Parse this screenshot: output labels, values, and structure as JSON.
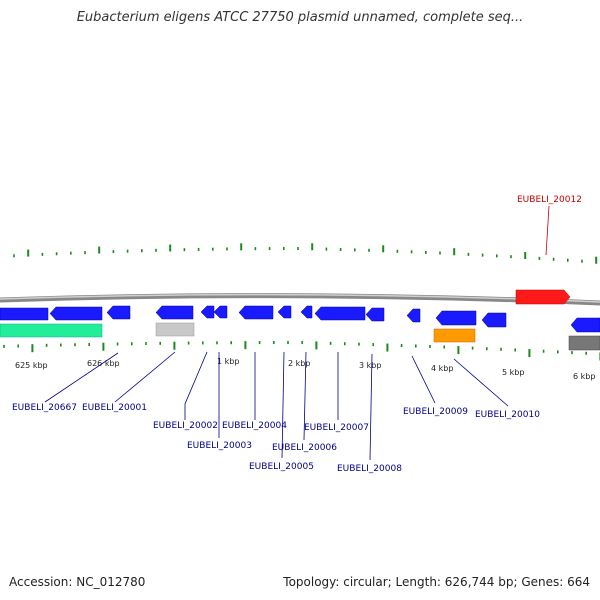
{
  "header": {
    "title": "Eubacterium eligens ATCC 27750 plasmid unnamed, complete seq..."
  },
  "footer": {
    "accession": "Accession: NC_012780",
    "summary": "Topology: circular; Length: 626,744 bp; Genes: 664"
  },
  "scale_labels": [
    "625 kbp",
    "626 kbp",
    "1 kbp",
    "2 kbp",
    "3 kbp",
    "4 kbp",
    "5 kbp",
    "6 kbp"
  ],
  "gene_labels": [
    {
      "id": "EUBELI_20667",
      "color": "#00008b"
    },
    {
      "id": "EUBELI_20001",
      "color": "#00008b"
    },
    {
      "id": "EUBELI_20002",
      "color": "#00008b"
    },
    {
      "id": "EUBELI_20003",
      "color": "#00008b"
    },
    {
      "id": "EUBELI_20004",
      "color": "#00008b"
    },
    {
      "id": "EUBELI_20005",
      "color": "#00008b"
    },
    {
      "id": "EUBELI_20006",
      "color": "#00008b"
    },
    {
      "id": "EUBELI_20007",
      "color": "#00008b"
    },
    {
      "id": "EUBELI_20008",
      "color": "#00008b"
    },
    {
      "id": "EUBELI_20009",
      "color": "#00008b"
    },
    {
      "id": "EUBELI_20010",
      "color": "#00008b"
    },
    {
      "id": "EUBELI_20012",
      "color": "#cc0000"
    }
  ],
  "colors": {
    "forward_gene": "#ff1a1a",
    "reverse_gene": "#1a1aff",
    "rna_green": "#22ee99",
    "pseudo_gray": "#bbbbbb",
    "orange": "#ff9900",
    "dark_gray": "#777777",
    "backbone": "#999999",
    "tick": "#1a8a1a"
  }
}
